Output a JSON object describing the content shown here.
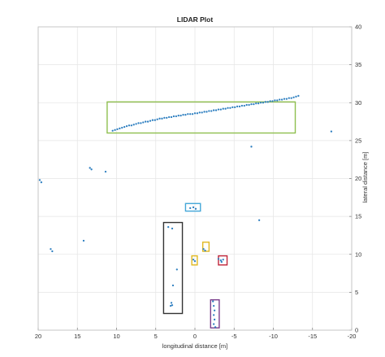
{
  "chart_data": {
    "type": "scatter",
    "title": "LIDAR Plot",
    "xlabel": "longitudinal distance [m]",
    "ylabel": "lateral distance [m]",
    "xlim": [
      20,
      -20
    ],
    "ylim": [
      0,
      40
    ],
    "x_reversed": true,
    "y_axis_side": "right",
    "grid": true,
    "xticks": [
      20,
      15,
      10,
      5,
      0,
      -5,
      -10,
      -15,
      -20
    ],
    "yticks": [
      0,
      5,
      10,
      15,
      20,
      25,
      30,
      35,
      40
    ],
    "xtick_labels": [
      "20",
      "15",
      "10",
      "5",
      "0",
      "-5",
      "-10",
      "-15",
      "-20"
    ],
    "ytick_labels": [
      "0",
      "5",
      "10",
      "15",
      "20",
      "25",
      "30",
      "35",
      "40"
    ],
    "point_color": "#2e7fc0",
    "points": [
      [
        10.5,
        26.3
      ],
      [
        10.2,
        26.4
      ],
      [
        9.9,
        26.5
      ],
      [
        9.6,
        26.6
      ],
      [
        9.3,
        26.7
      ],
      [
        9.0,
        26.8
      ],
      [
        8.7,
        26.9
      ],
      [
        8.4,
        27.0
      ],
      [
        8.1,
        27.0
      ],
      [
        7.8,
        27.1
      ],
      [
        7.5,
        27.2
      ],
      [
        7.2,
        27.3
      ],
      [
        6.9,
        27.3
      ],
      [
        6.6,
        27.4
      ],
      [
        6.3,
        27.5
      ],
      [
        6.0,
        27.5
      ],
      [
        5.7,
        27.6
      ],
      [
        5.4,
        27.7
      ],
      [
        5.1,
        27.7
      ],
      [
        4.8,
        27.8
      ],
      [
        4.5,
        27.9
      ],
      [
        4.2,
        27.9
      ],
      [
        3.9,
        28.0
      ],
      [
        3.6,
        28.0
      ],
      [
        3.3,
        28.1
      ],
      [
        3.0,
        28.1
      ],
      [
        2.7,
        28.2
      ],
      [
        2.4,
        28.2
      ],
      [
        2.1,
        28.3
      ],
      [
        1.8,
        28.3
      ],
      [
        1.5,
        28.4
      ],
      [
        1.2,
        28.4
      ],
      [
        0.9,
        28.5
      ],
      [
        0.6,
        28.5
      ],
      [
        0.3,
        28.5
      ],
      [
        0.0,
        28.6
      ],
      [
        -0.3,
        28.6
      ],
      [
        -0.6,
        28.7
      ],
      [
        -0.9,
        28.7
      ],
      [
        -1.2,
        28.8
      ],
      [
        -1.5,
        28.8
      ],
      [
        -1.8,
        28.9
      ],
      [
        -2.1,
        28.9
      ],
      [
        -2.4,
        29.0
      ],
      [
        -2.7,
        29.0
      ],
      [
        -3.0,
        29.1
      ],
      [
        -3.3,
        29.1
      ],
      [
        -3.6,
        29.2
      ],
      [
        -3.9,
        29.2
      ],
      [
        -4.2,
        29.3
      ],
      [
        -4.5,
        29.3
      ],
      [
        -4.8,
        29.4
      ],
      [
        -5.1,
        29.4
      ],
      [
        -5.4,
        29.5
      ],
      [
        -5.7,
        29.5
      ],
      [
        -6.0,
        29.6
      ],
      [
        -6.3,
        29.6
      ],
      [
        -6.6,
        29.7
      ],
      [
        -6.9,
        29.7
      ],
      [
        -7.2,
        29.8
      ],
      [
        -7.5,
        29.8
      ],
      [
        -7.8,
        29.9
      ],
      [
        -8.1,
        29.9
      ],
      [
        -8.4,
        30.0
      ],
      [
        -8.7,
        30.0
      ],
      [
        -9.0,
        30.1
      ],
      [
        -9.3,
        30.1
      ],
      [
        -9.6,
        30.2
      ],
      [
        -9.9,
        30.2
      ],
      [
        -10.2,
        30.3
      ],
      [
        -10.5,
        30.3
      ],
      [
        -10.8,
        30.4
      ],
      [
        -11.1,
        30.4
      ],
      [
        -11.4,
        30.5
      ],
      [
        -11.7,
        30.5
      ],
      [
        -12.0,
        30.6
      ],
      [
        -12.3,
        30.6
      ],
      [
        -12.6,
        30.7
      ],
      [
        -12.9,
        30.8
      ],
      [
        -13.2,
        30.9
      ],
      [
        -17.4,
        26.2
      ],
      [
        -7.2,
        24.2
      ],
      [
        13.4,
        21.4
      ],
      [
        13.2,
        21.2
      ],
      [
        11.4,
        20.9
      ],
      [
        19.8,
        19.8
      ],
      [
        19.6,
        19.5
      ],
      [
        0.6,
        16.1
      ],
      [
        0.2,
        16.2
      ],
      [
        -0.1,
        16.0
      ],
      [
        -8.2,
        14.5
      ],
      [
        14.2,
        11.8
      ],
      [
        18.4,
        10.7
      ],
      [
        18.2,
        10.4
      ],
      [
        3.4,
        13.6
      ],
      [
        2.9,
        13.4
      ],
      [
        2.3,
        8.0
      ],
      [
        2.8,
        5.9
      ],
      [
        3.0,
        3.6
      ],
      [
        2.9,
        3.3
      ],
      [
        3.1,
        3.2
      ],
      [
        -1.1,
        10.7
      ],
      [
        -1.3,
        10.5
      ],
      [
        0.2,
        9.3
      ],
      [
        0.0,
        9.1
      ],
      [
        -3.0,
        9.4
      ],
      [
        -3.3,
        9.2
      ],
      [
        -3.6,
        9.3
      ],
      [
        -3.4,
        9.0
      ],
      [
        -2.3,
        3.8
      ],
      [
        -2.4,
        3.2
      ],
      [
        -2.5,
        2.6
      ],
      [
        -2.4,
        2.0
      ],
      [
        -2.5,
        1.4
      ],
      [
        -2.4,
        0.8
      ],
      [
        -2.6,
        0.4
      ]
    ],
    "boxes": [
      {
        "x0": 11.2,
        "x1": -12.8,
        "y0": 26.0,
        "y1": 30.1,
        "color": "#8fbf4f"
      },
      {
        "x0": 1.2,
        "x1": -0.7,
        "y0": 15.7,
        "y1": 16.7,
        "color": "#43a7d8"
      },
      {
        "x0": 4.0,
        "x1": 1.6,
        "y0": 2.2,
        "y1": 14.2,
        "color": "#333333"
      },
      {
        "x0": -1.0,
        "x1": -1.8,
        "y0": 10.4,
        "y1": 11.6,
        "color": "#e0b820"
      },
      {
        "x0": 0.4,
        "x1": -0.3,
        "y0": 8.6,
        "y1": 9.8,
        "color": "#e0b820"
      },
      {
        "x0": -3.0,
        "x1": -4.1,
        "y0": 8.6,
        "y1": 9.8,
        "color": "#c0253a"
      },
      {
        "x0": -2.0,
        "x1": -3.1,
        "y0": 0.3,
        "y1": 4.0,
        "color": "#7a3e8c"
      }
    ]
  }
}
